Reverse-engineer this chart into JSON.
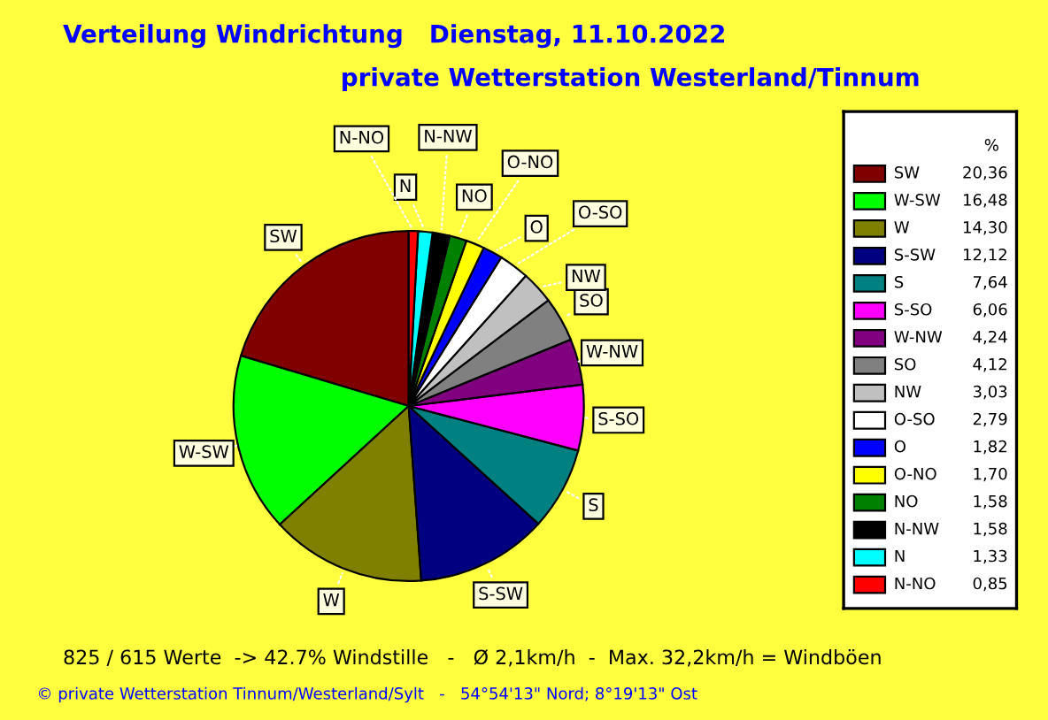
{
  "chart_data": {
    "type": "pie",
    "title": "Verteilung Windrichtung   Dienstag, 11.10.2022",
    "subtitle": "private Wetterstation Westerland/Tinnum",
    "categories": [
      "SW",
      "W-SW",
      "W",
      "S-SW",
      "S",
      "S-SO",
      "W-NW",
      "SO",
      "NW",
      "O-SO",
      "O",
      "O-NO",
      "NO",
      "N-NW",
      "N",
      "N-NO"
    ],
    "values": [
      20.36,
      16.48,
      14.3,
      12.12,
      7.64,
      6.06,
      4.24,
      4.12,
      3.03,
      2.79,
      1.82,
      1.7,
      1.58,
      1.58,
      1.33,
      0.85
    ],
    "value_labels": [
      "20,36",
      "16,48",
      "14,30",
      "12,12",
      "7,64",
      "6,06",
      "4,24",
      "4,12",
      "3,03",
      "2,79",
      "1,82",
      "1,70",
      "1,58",
      "1,58",
      "1,33",
      "0,85"
    ],
    "colors": [
      "#800000",
      "#00ff00",
      "#808000",
      "#000080",
      "#008080",
      "#ff00ff",
      "#800080",
      "#808080",
      "#c0c0c0",
      "#ffffff",
      "#0000ff",
      "#ffff00",
      "#008000",
      "#000000",
      "#00ffff",
      "#ff0000"
    ],
    "legend_title": "%",
    "legend": "right",
    "annotations": [
      "825 / 615 Werte  -> 42.7% Windstille   -   Ø 2,1km/h  -  Max. 32,2km/h = Windböen",
      "© private Wetterstation Tinnum/Westerland/Sylt   -   54°54'13\" Nord; 8°19'13\" Ost"
    ]
  }
}
